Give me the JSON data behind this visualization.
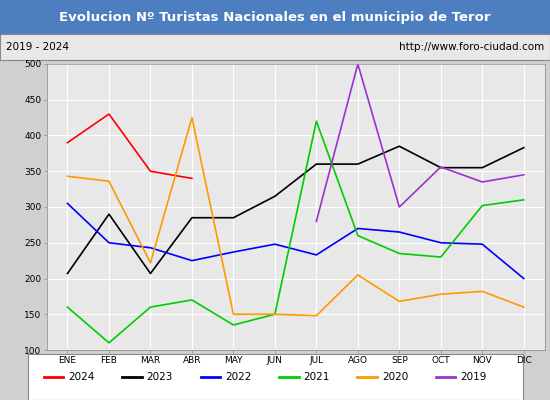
{
  "title": "Evolucion Nº Turistas Nacionales en el municipio de Teror",
  "subtitle_left": "2019 - 2024",
  "subtitle_right": "http://www.foro-ciudad.com",
  "title_bg_color": "#4d7ebf",
  "title_text_color": "#ffffff",
  "months": [
    "ENE",
    "FEB",
    "MAR",
    "ABR",
    "MAY",
    "JUN",
    "JUL",
    "AGO",
    "SEP",
    "OCT",
    "NOV",
    "DIC"
  ],
  "ylim": [
    100,
    500
  ],
  "yticks": [
    100,
    150,
    200,
    250,
    300,
    350,
    400,
    450,
    500
  ],
  "series": {
    "2024": {
      "color": "#ff0000",
      "values": [
        390,
        430,
        350,
        340,
        null,
        null,
        null,
        null,
        null,
        null,
        null,
        null
      ]
    },
    "2023": {
      "color": "#000000",
      "values": [
        207,
        290,
        207,
        285,
        285,
        315,
        360,
        360,
        385,
        355,
        355,
        383
      ]
    },
    "2022": {
      "color": "#0000ff",
      "values": [
        305,
        250,
        243,
        225,
        237,
        248,
        233,
        270,
        265,
        250,
        248,
        200
      ]
    },
    "2021": {
      "color": "#00cc00",
      "values": [
        160,
        110,
        160,
        170,
        135,
        150,
        420,
        260,
        235,
        230,
        302,
        310
      ]
    },
    "2020": {
      "color": "#ff9900",
      "values": [
        343,
        336,
        222,
        425,
        150,
        150,
        148,
        205,
        168,
        178,
        182,
        160
      ]
    },
    "2019": {
      "color": "#9933cc",
      "values": [
        null,
        null,
        null,
        null,
        null,
        null,
        280,
        500,
        300,
        356,
        335,
        345
      ]
    }
  },
  "legend_order": [
    "2024",
    "2023",
    "2022",
    "2021",
    "2020",
    "2019"
  ],
  "plot_bg_color": "#e8e8e8",
  "grid_color": "#ffffff"
}
